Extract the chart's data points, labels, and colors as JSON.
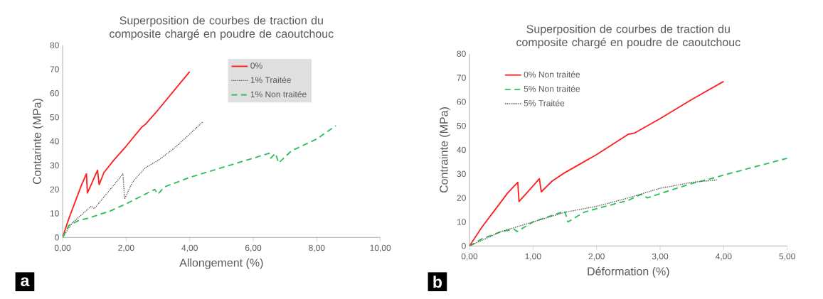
{
  "chart_data": [
    {
      "type": "line",
      "title": "Superposition de courbes de traction du composite chargé en poudre de caoutchouc",
      "xlabel": "Allongement (%)",
      "ylabel": "Contarinte (MPa)",
      "xlim": [
        0,
        10
      ],
      "ylim": [
        0,
        80
      ],
      "xticks": [
        {
          "value": 0,
          "label": "0,00"
        },
        {
          "value": 2,
          "label": "2,00"
        },
        {
          "value": 4,
          "label": "4,00"
        },
        {
          "value": 6,
          "label": "6,00"
        },
        {
          "value": 8,
          "label": "8,00"
        },
        {
          "value": 10,
          "label": "10,00"
        }
      ],
      "yticks": [
        0,
        10,
        20,
        30,
        40,
        50,
        60,
        70,
        80
      ],
      "legend": "top right",
      "grid": false,
      "annotations": [
        "a"
      ],
      "series": [
        {
          "name": "0%",
          "color": "#ff2020",
          "line_style": "solid",
          "x": [
            0,
            0.2,
            0.4,
            0.6,
            0.75,
            0.78,
            0.9,
            1.1,
            1.15,
            1.3,
            1.6,
            2,
            2.5,
            2.6,
            3,
            3.5,
            4
          ],
          "values": [
            0,
            8,
            15,
            22,
            26.5,
            18.5,
            22,
            28,
            22,
            27,
            32,
            38,
            46,
            47,
            53,
            61,
            69
          ]
        },
        {
          "name": "1% Traitée",
          "color": "#505050",
          "line_style": "dotted",
          "x": [
            0,
            0.3,
            0.9,
            1,
            1.5,
            1.9,
            1.95,
            2.2,
            2.6,
            3,
            3.5,
            4,
            4.4
          ],
          "values": [
            0,
            6,
            13,
            12,
            20,
            26.5,
            16,
            23,
            29,
            32,
            37,
            43,
            48
          ]
        },
        {
          "name": "1% Non traitée",
          "color": "#2ec05a",
          "line_style": "dashed",
          "x": [
            0,
            0.2,
            0.5,
            0.8,
            1.5,
            2,
            2.9,
            3,
            3.2,
            4,
            5,
            6,
            6.5,
            6.55,
            6.7,
            6.8,
            7.2,
            8,
            8.6
          ],
          "values": [
            0,
            5,
            7,
            8,
            11,
            14,
            20,
            18,
            21,
            25,
            29,
            33,
            35,
            33,
            35,
            31,
            36,
            41,
            46.5
          ]
        }
      ]
    },
    {
      "type": "line",
      "title": "Superposition de courbes de traction du composite chargé en poudre de caoutchouc",
      "xlabel": "Déformation (%)",
      "ylabel": "Contrainte (MPa)",
      "xlim": [
        0,
        5
      ],
      "ylim": [
        0,
        80
      ],
      "xticks": [
        {
          "value": 0,
          "label": "0,00"
        },
        {
          "value": 1,
          "label": "1,00"
        },
        {
          "value": 2,
          "label": "2,00"
        },
        {
          "value": 3,
          "label": "3,00"
        },
        {
          "value": 4,
          "label": "4,00"
        },
        {
          "value": 5,
          "label": "5,00"
        }
      ],
      "yticks": [
        0,
        10,
        20,
        30,
        40,
        50,
        60,
        70,
        80
      ],
      "legend": "top left",
      "grid": false,
      "annotations": [
        "b"
      ],
      "series": [
        {
          "name": "0% Non traitée",
          "color": "#ff2020",
          "line_style": "solid",
          "x": [
            0,
            0.2,
            0.4,
            0.6,
            0.76,
            0.78,
            0.9,
            1.1,
            1.13,
            1.3,
            1.5,
            1.8,
            2,
            2.5,
            2.6,
            3,
            3.5,
            4
          ],
          "values": [
            0,
            8,
            15,
            22,
            26.5,
            18.5,
            22,
            28,
            22.5,
            27,
            30.5,
            35,
            38,
            46.5,
            47,
            53,
            61,
            68.5
          ]
        },
        {
          "name": "5% Non traitée",
          "color": "#2ec05a",
          "line_style": "dashed",
          "x": [
            0,
            0.2,
            0.5,
            0.7,
            0.75,
            1,
            1.5,
            1.55,
            1.8,
            2,
            2.5,
            2.7,
            2.8,
            3.2,
            3.5,
            3.8,
            4,
            4.5,
            5
          ],
          "values": [
            0,
            3,
            6,
            7,
            6,
            10,
            14.5,
            10,
            14,
            15.5,
            19,
            21.5,
            20,
            23.5,
            26,
            28,
            29.5,
            33,
            36.5
          ]
        },
        {
          "name": "5% Traitée",
          "color": "#505050",
          "line_style": "dotted",
          "x": [
            0,
            0.5,
            1,
            1.5,
            2,
            2.5,
            3,
            3.5,
            3.9
          ],
          "values": [
            0,
            6,
            10,
            14,
            16.5,
            20,
            24,
            26.5,
            27.5
          ]
        }
      ]
    }
  ]
}
